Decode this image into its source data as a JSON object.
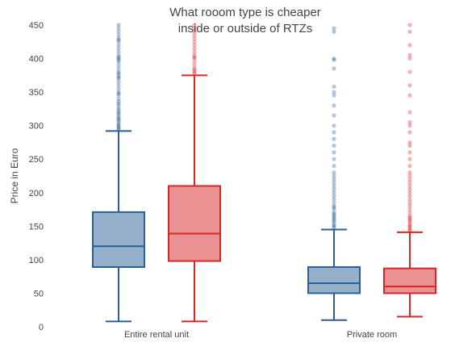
{
  "chart_data": {
    "type": "box",
    "title": "What rooom type is cheaper inside or outside of RTZs",
    "title_lines": [
      "What rooom type is cheaper",
      "inside or outside of RTZs"
    ],
    "xlabel": "",
    "ylabel": "Price in Euro",
    "ylim": [
      0,
      450
    ],
    "yticks": [
      0,
      50,
      100,
      150,
      200,
      250,
      300,
      350,
      400,
      450
    ],
    "categories": [
      "Entire rental unit",
      "Private room"
    ],
    "series": [
      {
        "color": "#2c5f93",
        "fill": "#95b0cb",
        "boxes": [
          {
            "category": "Entire rental unit",
            "lowerfence": 8,
            "q1": 89,
            "median": 120,
            "q3": 171,
            "upperfence": 292,
            "outliers": [
              294,
              296,
              298,
              300,
              302,
              305,
              308,
              310,
              312,
              315,
              318,
              320,
              323,
              326,
              330,
              333,
              336,
              340,
              345,
              348,
              350,
              355,
              360,
              365,
              370,
              372,
              375,
              378,
              380,
              385,
              390,
              395,
              398,
              400,
              402,
              405,
              410,
              415,
              420,
              425,
              428,
              430,
              435,
              440,
              445,
              450
            ]
          },
          {
            "category": "Private room",
            "lowerfence": 10,
            "q1": 50,
            "median": 65,
            "q3": 89,
            "upperfence": 145,
            "outliers": [
              148,
              150,
              152,
              155,
              158,
              160,
              163,
              165,
              168,
              170,
              175,
              178,
              180,
              185,
              190,
              195,
              200,
              205,
              210,
              215,
              220,
              225,
              230,
              240,
              250,
              260,
              270,
              280,
              290,
              300,
              315,
              330,
              345,
              350,
              358,
              385,
              398,
              400,
              440,
              445
            ]
          }
        ]
      },
      {
        "color": "#d62728",
        "fill": "#eb9193",
        "boxes": [
          {
            "category": "Entire rental unit",
            "lowerfence": 8,
            "q1": 98,
            "median": 139,
            "q3": 210,
            "upperfence": 375,
            "outliers": [
              378,
              380,
              383,
              385,
              390,
              395,
              400,
              402,
              405,
              410,
              415,
              420,
              425,
              430,
              435,
              440,
              445,
              450
            ]
          },
          {
            "category": "Private room",
            "lowerfence": 15,
            "q1": 50,
            "median": 60,
            "q3": 87,
            "upperfence": 141,
            "outliers": [
              143,
              145,
              148,
              150,
              152,
              155,
              158,
              160,
              163,
              165,
              170,
              175,
              180,
              185,
              190,
              195,
              200,
              205,
              210,
              215,
              220,
              225,
              230,
              240,
              250,
              260,
              270,
              275,
              290,
              300,
              305,
              320,
              345,
              360,
              380,
              400,
              405,
              420,
              440,
              450
            ]
          }
        ]
      }
    ],
    "legend": "none",
    "grid": false
  }
}
